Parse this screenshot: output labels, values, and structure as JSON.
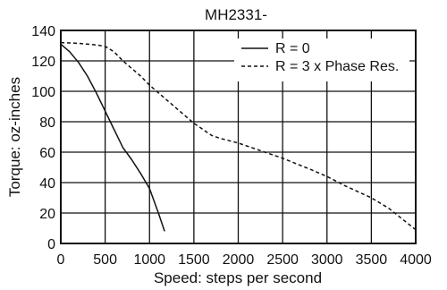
{
  "chart_data": {
    "type": "line",
    "title": "MH2331-",
    "xlabel": "Speed: steps per second",
    "ylabel": "Torque: oz-inches",
    "xlim": [
      0,
      4000
    ],
    "ylim": [
      0,
      140
    ],
    "xticks": [
      0,
      500,
      1000,
      1500,
      2000,
      2500,
      3000,
      3500,
      4000
    ],
    "yticks": [
      0,
      20,
      40,
      60,
      80,
      100,
      120,
      140
    ],
    "grid": true,
    "legend_position": "top-right",
    "series": [
      {
        "name": "R = 0",
        "style": "solid",
        "x": [
          0,
          100,
          200,
          300,
          400,
          500,
          600,
          700,
          800,
          900,
          1000,
          1100,
          1170
        ],
        "y": [
          131,
          126,
          119,
          110,
          99,
          87,
          75,
          63,
          55,
          46,
          36,
          20,
          8
        ]
      },
      {
        "name": "R = 3 x Phase Res.",
        "style": "dashed",
        "x": [
          0,
          200,
          400,
          500,
          600,
          700,
          800,
          900,
          1000,
          1200,
          1400,
          1500,
          1600,
          1700,
          1800,
          2000,
          2200,
          2500,
          2800,
          3000,
          3200,
          3500,
          3700,
          4000
        ],
        "y": [
          132,
          131.5,
          130.5,
          129.5,
          126,
          120,
          115,
          110,
          104,
          94,
          84,
          79,
          75,
          71,
          69,
          66,
          62,
          56,
          49,
          44,
          38,
          30,
          23,
          9
        ]
      }
    ]
  }
}
